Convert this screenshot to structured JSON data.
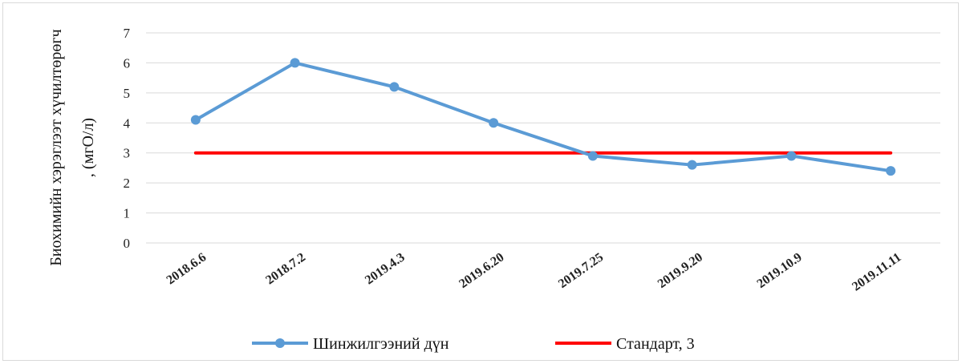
{
  "chart_data": {
    "type": "line",
    "categories": [
      "2018.6.6",
      "2018.7.2",
      "2019.4.3",
      "2019.6.20",
      "2019.7.25",
      "2019.9.20",
      "2019.10.9",
      "2019.11.11"
    ],
    "series": [
      {
        "name": "Шинжилгээний дүн",
        "values": [
          4.1,
          6.0,
          5.2,
          4.0,
          2.9,
          2.6,
          2.9,
          2.4
        ],
        "color": "#5b9bd5",
        "markers": true
      },
      {
        "name": "Стандарт, 3",
        "values": [
          3,
          3,
          3,
          3,
          3,
          3,
          3,
          3
        ],
        "color": "#ff0000",
        "markers": false
      }
    ],
    "ylabel_line1": "Биохимийн хэрэглээт хүчилтөрөгч",
    "ylabel_line2": ", (мгО/л)",
    "ylim": [
      0,
      7
    ],
    "yticks": [
      0,
      1,
      2,
      3,
      4,
      5,
      6,
      7
    ],
    "grid": true,
    "legend": "bottom",
    "gridline_color": "#d9d9d9"
  }
}
